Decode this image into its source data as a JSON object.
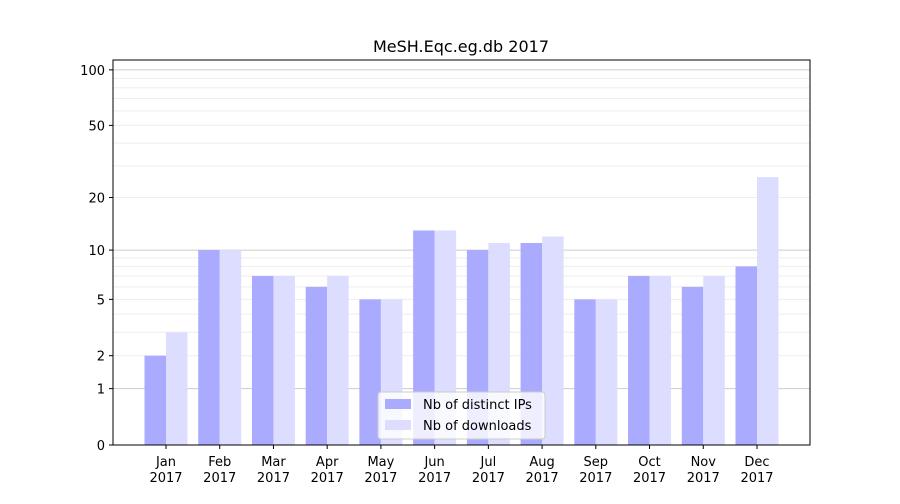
{
  "chart_data": {
    "type": "bar",
    "title": "MeSH.Eqc.eg.db 2017",
    "xlabel": "",
    "ylabel": "",
    "yscale": "log(1+y)",
    "ylim": [
      0,
      113
    ],
    "yticks": [
      0,
      1,
      2,
      5,
      10,
      20,
      50,
      100
    ],
    "categories": [
      "Jan\n2017",
      "Feb\n2017",
      "Mar\n2017",
      "Apr\n2017",
      "May\n2017",
      "Jun\n2017",
      "Jul\n2017",
      "Aug\n2017",
      "Sep\n2017",
      "Oct\n2017",
      "Nov\n2017",
      "Dec\n2017"
    ],
    "series": [
      {
        "name": "Nb of distinct IPs",
        "color": "#aaaaff",
        "values": [
          2,
          10,
          7,
          6,
          5,
          13,
          10,
          11,
          5,
          7,
          6,
          8
        ]
      },
      {
        "name": "Nb of downloads",
        "color": "#ddddff",
        "values": [
          3,
          10,
          7,
          7,
          5,
          13,
          11,
          12,
          5,
          7,
          7,
          26
        ]
      }
    ],
    "grid": true,
    "legend_position": "bottom-center"
  }
}
